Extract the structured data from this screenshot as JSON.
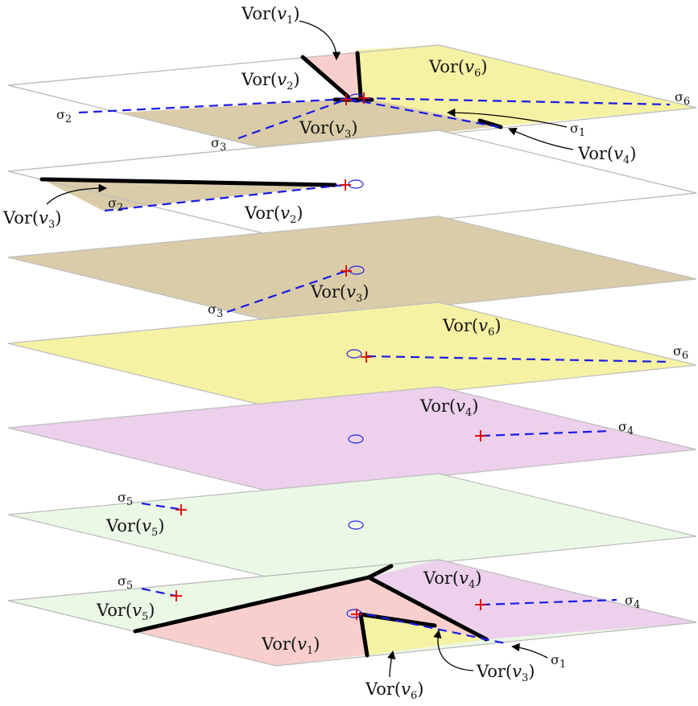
{
  "colors": {
    "v1": "#f8cfcc",
    "v2": "#ffffff",
    "v3": "#dacca8",
    "v4": "#ecd0ec",
    "v5": "#ecf8e6",
    "v6": "#f6f2a4",
    "dashed": "#1a1ae6",
    "site": "#e00000",
    "origin": "#2222dd"
  },
  "layers": [
    {
      "labels": [
        {
          "key": "v1",
          "text": "Vor",
          "sub": "1"
        },
        {
          "key": "v2",
          "text": "Vor",
          "sub": "2"
        },
        {
          "key": "v6",
          "text": "Vor",
          "sub": "6"
        },
        {
          "key": "v3",
          "text": "Vor",
          "sub": "3"
        },
        {
          "key": "v4",
          "text": "Vor",
          "sub": "4"
        }
      ],
      "sigmas": [
        {
          "key": "s2",
          "sub": "2"
        },
        {
          "key": "s3",
          "sub": "3"
        },
        {
          "key": "s1",
          "sub": "1"
        },
        {
          "key": "s6",
          "sub": "6"
        }
      ]
    },
    {
      "labels": [
        {
          "key": "v3",
          "text": "Vor",
          "sub": "3"
        },
        {
          "key": "v2",
          "text": "Vor",
          "sub": "2"
        }
      ],
      "sigmas": [
        {
          "key": "s2",
          "sub": "2"
        }
      ]
    },
    {
      "labels": [
        {
          "key": "v3",
          "text": "Vor",
          "sub": "3"
        }
      ],
      "sigmas": [
        {
          "key": "s3",
          "sub": "3"
        }
      ]
    },
    {
      "labels": [
        {
          "key": "v6",
          "text": "Vor",
          "sub": "6"
        }
      ],
      "sigmas": [
        {
          "key": "s6",
          "sub": "6"
        }
      ]
    },
    {
      "labels": [
        {
          "key": "v4",
          "text": "Vor",
          "sub": "4"
        }
      ],
      "sigmas": [
        {
          "key": "s4",
          "sub": "4"
        }
      ]
    },
    {
      "labels": [
        {
          "key": "v5",
          "text": "Vor",
          "sub": "5"
        }
      ],
      "sigmas": [
        {
          "key": "s5",
          "sub": "5"
        }
      ]
    },
    {
      "labels": [
        {
          "key": "v4",
          "text": "Vor",
          "sub": "4"
        },
        {
          "key": "v5",
          "text": "Vor",
          "sub": "5"
        },
        {
          "key": "v1",
          "text": "Vor",
          "sub": "1"
        },
        {
          "key": "v6",
          "text": "Vor",
          "sub": "6"
        },
        {
          "key": "v3",
          "text": "Vor",
          "sub": "3"
        }
      ],
      "sigmas": [
        {
          "key": "s5",
          "sub": "5"
        },
        {
          "key": "s4",
          "sub": "4"
        },
        {
          "key": "s1",
          "sub": "1"
        }
      ]
    }
  ],
  "symbols": {
    "sigma": "σ",
    "v": "v"
  }
}
